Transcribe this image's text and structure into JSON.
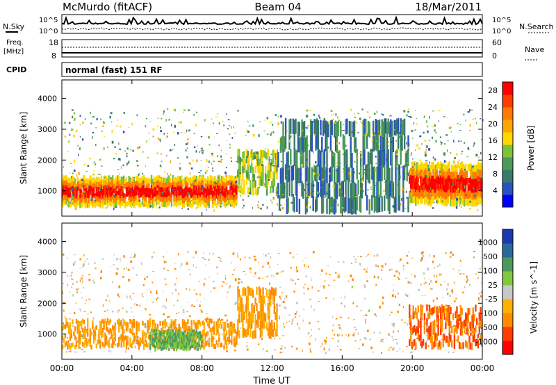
{
  "header": {
    "station": "McMurdo (fitACF)",
    "beam": "Beam 04",
    "date": "18/Mar/2011"
  },
  "top_panels": {
    "nsky_label": "N.Sky",
    "nsearch_label": "N.Search",
    "noise_ticks": [
      "10^5",
      "10^0"
    ],
    "freq_label": "Freq.",
    "freq_unit": "[MHz]",
    "freq_ticks": [
      "18",
      "8"
    ],
    "nave_label": "Nave",
    "nave_ticks": [
      "60",
      "0"
    ],
    "cpid_label": "CPID",
    "cpid_value": "normal (fast) 151 RF"
  },
  "colors": {
    "power_scale": [
      "#0000ff",
      "#2a52be",
      "#3a7a6a",
      "#4c9a5a",
      "#7cc23a",
      "#ffd700",
      "#ffa500",
      "#ff7a00",
      "#ff3c00",
      "#ff0000"
    ],
    "velocity_scale": [
      "#ff0000",
      "#ff3c00",
      "#ff8c00",
      "#ffb000",
      "#c8c8c8",
      "#80c840",
      "#4c9a5a",
      "#2a6a9a",
      "#1a3ab0"
    ]
  },
  "chart_data": [
    {
      "type": "heatmap",
      "title": "Power",
      "xlabel": "",
      "ylabel": "Slant Range [km]",
      "xlim": [
        "00:00",
        "24:00"
      ],
      "ylim": [
        180,
        4600
      ],
      "x_ticks": [
        "00:00",
        "04:00",
        "08:00",
        "12:00",
        "16:00",
        "20:00",
        "00:00"
      ],
      "y_ticks": [
        1000,
        2000,
        3000,
        4000
      ],
      "colorbar_label": "Power [dB]",
      "colorbar_ticks": [
        4,
        8,
        12,
        16,
        20,
        24,
        28
      ],
      "colorbar_range": [
        0,
        30
      ],
      "features": [
        {
          "t_start": 0.0,
          "t_end": 10.0,
          "r_min": 500,
          "r_max": 1450,
          "value": 28
        },
        {
          "t_start": 10.0,
          "t_end": 12.3,
          "r_min": 900,
          "r_max": 2300,
          "value": 14
        },
        {
          "t_start": 12.3,
          "t_end": 19.8,
          "r_min": 300,
          "r_max": 3300,
          "value": 8
        },
        {
          "t_start": 19.8,
          "t_end": 24.0,
          "r_min": 550,
          "r_max": 1900,
          "value": 28
        }
      ]
    },
    {
      "type": "heatmap",
      "title": "Velocity",
      "xlabel": "Time UT",
      "ylabel": "Slant Range [km]",
      "xlim": [
        "00:00",
        "24:00"
      ],
      "ylim": [
        180,
        4600
      ],
      "x_ticks": [
        "00:00",
        "04:00",
        "08:00",
        "12:00",
        "16:00",
        "20:00",
        "00:00"
      ],
      "y_ticks": [
        1000,
        2000,
        3000,
        4000
      ],
      "colorbar_label": "Velocity [m s^-1]",
      "colorbar_ticks": [
        1000,
        500,
        100,
        25,
        -25,
        -100,
        -500,
        -1000
      ],
      "features": [
        {
          "t_start": 0.0,
          "t_end": 10.0,
          "r_min": 550,
          "r_max": 1450,
          "value": -100
        },
        {
          "t_start": 5.0,
          "t_end": 8.0,
          "r_min": 500,
          "r_max": 1100,
          "value": 100
        },
        {
          "t_start": 10.0,
          "t_end": 12.3,
          "r_min": 900,
          "r_max": 2500,
          "value": -100
        },
        {
          "t_start": 19.8,
          "t_end": 24.0,
          "r_min": 550,
          "r_max": 1900,
          "value": -500
        }
      ]
    }
  ]
}
